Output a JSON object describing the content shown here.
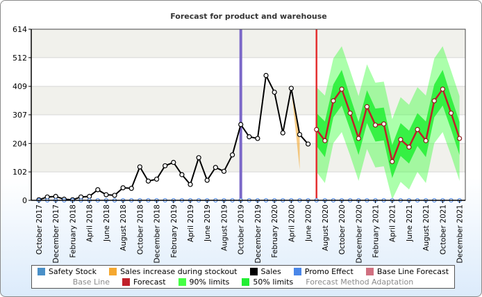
{
  "chart_data": {
    "type": "line",
    "title": "Forecast for product and warehouse",
    "xlabel": "",
    "ylabel": "",
    "ylim": [
      0,
      614
    ],
    "yticks": [
      0,
      102,
      204,
      307,
      409,
      512,
      614
    ],
    "x_tick_labels": [
      "October 2017",
      "December 2017",
      "February 2018",
      "April 2018",
      "June 2018",
      "August 2018",
      "October 2018",
      "December 2018",
      "February 2019",
      "April 2019",
      "June 2019",
      "August 2019",
      "October 2019",
      "December 2019",
      "February 2020",
      "April 2020",
      "June 2020",
      "August 2020",
      "October 2020",
      "December 2020",
      "February 2021",
      "April 2021",
      "June 2021",
      "August 2021",
      "October 2021",
      "December 2021"
    ],
    "periods": [
      "October 2017",
      "November 2017",
      "December 2017",
      "January 2018",
      "February 2018",
      "March 2018",
      "April 2018",
      "May 2018",
      "June 2018",
      "July 2018",
      "August 2018",
      "September 2018",
      "October 2018",
      "November 2018",
      "December 2018",
      "January 2019",
      "February 2019",
      "March 2019",
      "April 2019",
      "May 2019",
      "June 2019",
      "July 2019",
      "August 2019",
      "September 2019",
      "October 2019",
      "November 2019",
      "December 2019",
      "January 2020",
      "February 2020",
      "March 2020",
      "April 2020",
      "May 2020",
      "June 2020",
      "July 2020",
      "August 2020",
      "September 2020",
      "October 2020",
      "November 2020",
      "December 2020",
      "January 2021",
      "February 2021",
      "March 2021",
      "April 2021",
      "May 2021",
      "June 2021",
      "July 2021",
      "August 2021",
      "September 2021",
      "October 2021",
      "November 2021",
      "December 2021"
    ],
    "series": [
      {
        "name": "Sales",
        "color": "#000000",
        "start": "October 2017",
        "values": [
          2,
          12,
          14,
          4,
          2,
          12,
          14,
          38,
          20,
          18,
          45,
          43,
          120,
          69,
          76,
          124,
          136,
          92,
          57,
          153,
          72,
          118,
          104,
          163,
          272,
          228,
          222,
          448,
          388,
          242,
          402,
          236,
          202
        ]
      },
      {
        "name": "Forecast",
        "color": "#c0202a",
        "start": "July 2020",
        "values": [
          254,
          214,
          357,
          399,
          313,
          222,
          336,
          270,
          274,
          139,
          218,
          191,
          254,
          214,
          357,
          399,
          313,
          222
        ]
      },
      {
        "name": "50% limits",
        "color": "#22ee33",
        "start": "July 2020",
        "upper": [
          313,
          283,
          416,
          468,
          372,
          281,
          395,
          329,
          333,
          198,
          277,
          250,
          313,
          283,
          416,
          468,
          372,
          281
        ],
        "lower": [
          195,
          155,
          298,
          340,
          254,
          163,
          277,
          211,
          215,
          80,
          159,
          132,
          195,
          155,
          298,
          340,
          254,
          163
        ]
      },
      {
        "name": "90% limits",
        "color": "#44ff44",
        "start": "July 2020",
        "upper": [
          406,
          376,
          509,
          553,
          465,
          374,
          488,
          422,
          426,
          291,
          370,
          343,
          406,
          376,
          509,
          553,
          465,
          374
        ],
        "lower": [
          102,
          62,
          205,
          245,
          161,
          70,
          184,
          118,
          122,
          3,
          66,
          39,
          102,
          62,
          205,
          245,
          161,
          70
        ]
      },
      {
        "name": "Sales increase during stockout",
        "color": "#f5a830",
        "start": "April 2020",
        "upper": [
          402,
          236
        ],
        "lower": [
          402,
          110
        ]
      }
    ],
    "markers": [
      {
        "name": "Forecast Method Adaptation",
        "at": "October 2019",
        "color": "#7b68c8"
      },
      {
        "name": "Forecast start",
        "at": "July 2020",
        "color": "#e43030"
      }
    ],
    "legend": {
      "placement": "bottom",
      "row1": [
        {
          "label": "Safety Stock",
          "color": "#4a90c8",
          "active": true
        },
        {
          "label": "Sales increase during stockout",
          "color": "#f5a830",
          "active": true
        },
        {
          "label": "Sales",
          "color": "#000000",
          "active": true
        },
        {
          "label": "Promo Effect",
          "color": "#4a86e8",
          "active": true
        },
        {
          "label": "Base Line Forecast",
          "color": "#d07080",
          "active": true
        }
      ],
      "row2": [
        {
          "label": "Base Line",
          "color": "",
          "active": false
        },
        {
          "label": "Forecast",
          "color": "#c0202a",
          "active": true
        },
        {
          "label": "90% limits",
          "color": "#44ff44",
          "active": true
        },
        {
          "label": "50% limits",
          "color": "#22ee33",
          "active": true
        },
        {
          "label": "Forecast Method Adaptation",
          "color": "",
          "active": false
        }
      ]
    }
  }
}
